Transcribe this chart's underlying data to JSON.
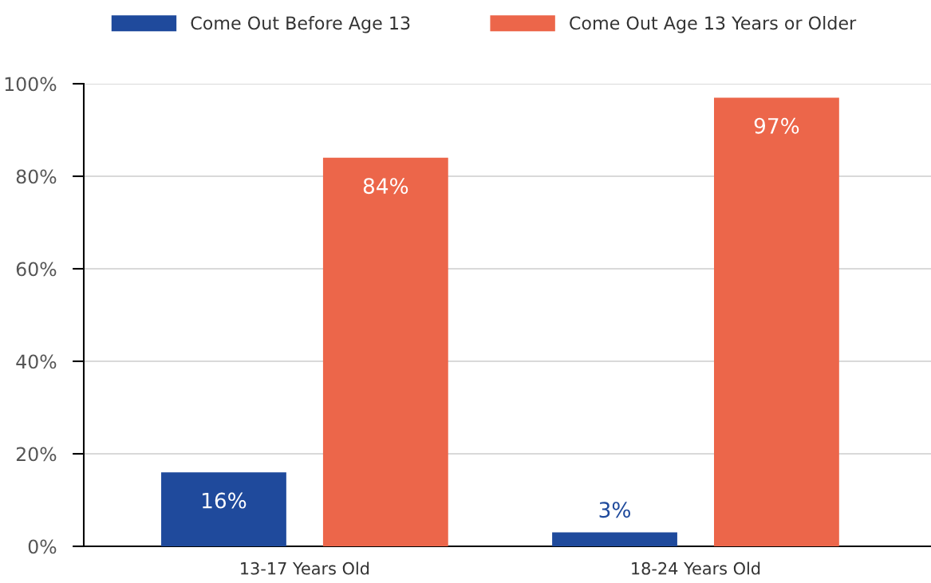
{
  "chart_data": {
    "type": "bar",
    "categories": [
      "13-17 Years Old",
      "18-24 Years Old"
    ],
    "series": [
      {
        "name": "Come Out Before Age 13",
        "color": "#1f4a9c",
        "values": [
          16,
          3
        ],
        "value_labels": [
          "16%",
          "3%"
        ]
      },
      {
        "name": "Come Out Age 13 Years or Older",
        "color": "#ec664a",
        "values": [
          84,
          97
        ],
        "value_labels": [
          "84%",
          "97%"
        ]
      }
    ],
    "ylim": [
      0,
      100
    ],
    "yticks": [
      {
        "value": 0,
        "label": "0%"
      },
      {
        "value": 20,
        "label": "20%"
      },
      {
        "value": 40,
        "label": "40%"
      },
      {
        "value": 60,
        "label": "60%"
      },
      {
        "value": 80,
        "label": "80%"
      },
      {
        "value": 100,
        "label": "100%"
      }
    ],
    "grid": "y",
    "legend": "top"
  }
}
